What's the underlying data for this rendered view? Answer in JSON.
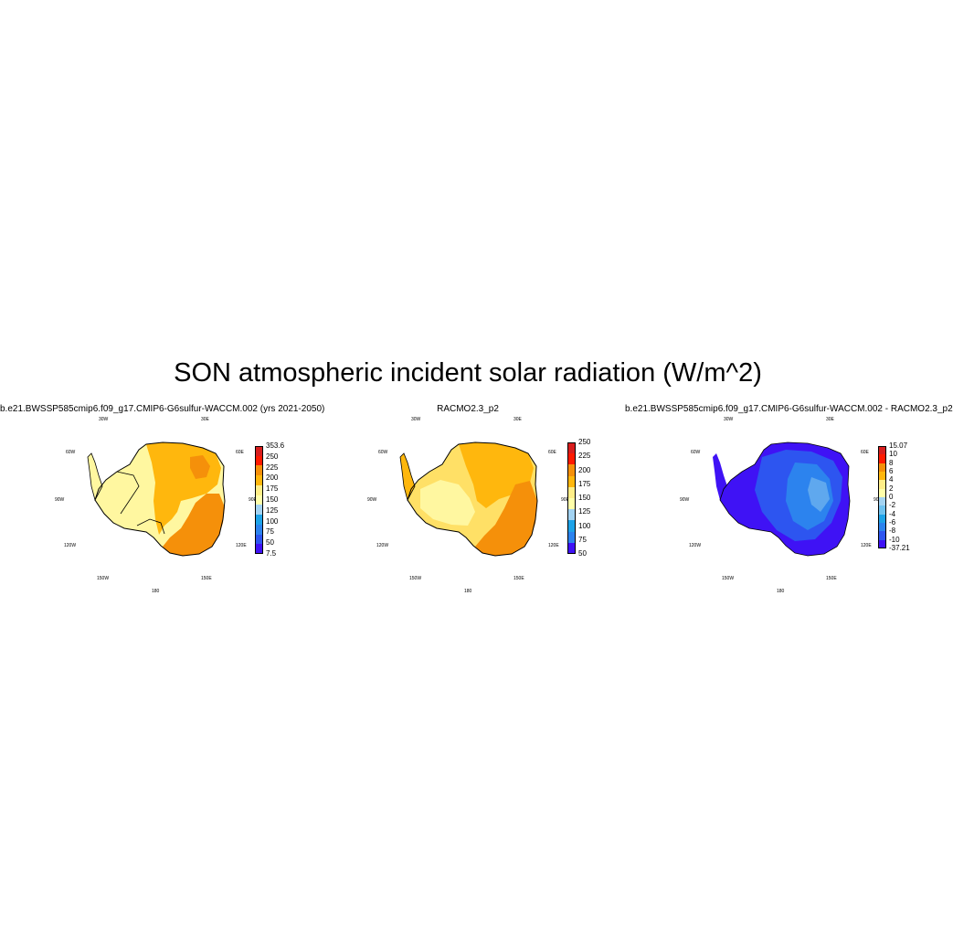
{
  "title": "SON atmospheric incident solar radiation (W/m^2)",
  "panels": [
    {
      "title": "b.e21.BWSSP585cmip6.f09_g17.CMIP6-G6sulfur-WACCM.002 (yrs 2021-2050)",
      "lon_labels": [
        "30W",
        "30E",
        "60W",
        "60E",
        "90W",
        "90E",
        "120W",
        "120E",
        "150W",
        "150E",
        "180"
      ],
      "colorbar": {
        "labels": [
          "353.6",
          "250",
          "225",
          "200",
          "175",
          "150",
          "125",
          "100",
          "75",
          "50",
          "7.5"
        ],
        "colors": [
          "#d81e1e",
          "#ff1a00",
          "#f5900a",
          "#ffb70d",
          "#ffee88",
          "#ffffaa",
          "#a3d3f2",
          "#1ea3e8",
          "#2c83ee",
          "#2d55f0",
          "#3f12f5"
        ]
      }
    },
    {
      "title": "RACMO2.3_p2",
      "lon_labels": [
        "30W",
        "30E",
        "60W",
        "60E",
        "90W",
        "90E",
        "120W",
        "120E",
        "150W",
        "150E",
        "180"
      ],
      "colorbar": {
        "labels": [
          "250",
          "225",
          "200",
          "175",
          "150",
          "125",
          "100",
          "75",
          "50"
        ],
        "colors": [
          "#d81e1e",
          "#ff1a00",
          "#f5900a",
          "#ffb70d",
          "#ffee88",
          "#ffffaa",
          "#a3d3f2",
          "#1ea3e8",
          "#2c83ee",
          "#3f12f5"
        ]
      }
    },
    {
      "title": "b.e21.BWSSP585cmip6.f09_g17.CMIP6-G6sulfur-WACCM.002 - RACMO2.3_p2",
      "lon_labels": [
        "30W",
        "30E",
        "60W",
        "60E",
        "90W",
        "90E",
        "120W",
        "120E",
        "150W",
        "150E",
        "180"
      ],
      "colorbar": {
        "labels": [
          "15.07",
          "10",
          "8",
          "6",
          "4",
          "2",
          "0",
          "-2",
          "-4",
          "-6",
          "-8",
          "-10",
          "-37.21"
        ],
        "colors": [
          "#d81e1e",
          "#ff1a00",
          "#f5900a",
          "#ffb70d",
          "#ffee88",
          "#ffffaa",
          "#a3d3f2",
          "#6ec2f0",
          "#1ea3e8",
          "#2c83ee",
          "#2d55f0",
          "#3f12f5"
        ]
      }
    }
  ],
  "map_colors": {
    "pale_yellow": "#fff7a0",
    "yellow": "#ffe066",
    "gold": "#ffb70d",
    "orange": "#f5900a",
    "dark_orange": "#ee7a08",
    "blue_dark": "#3f12f5",
    "blue_mid": "#2d55f0",
    "blue_light": "#2c83ee",
    "blue_pale": "#5fa8ee"
  }
}
